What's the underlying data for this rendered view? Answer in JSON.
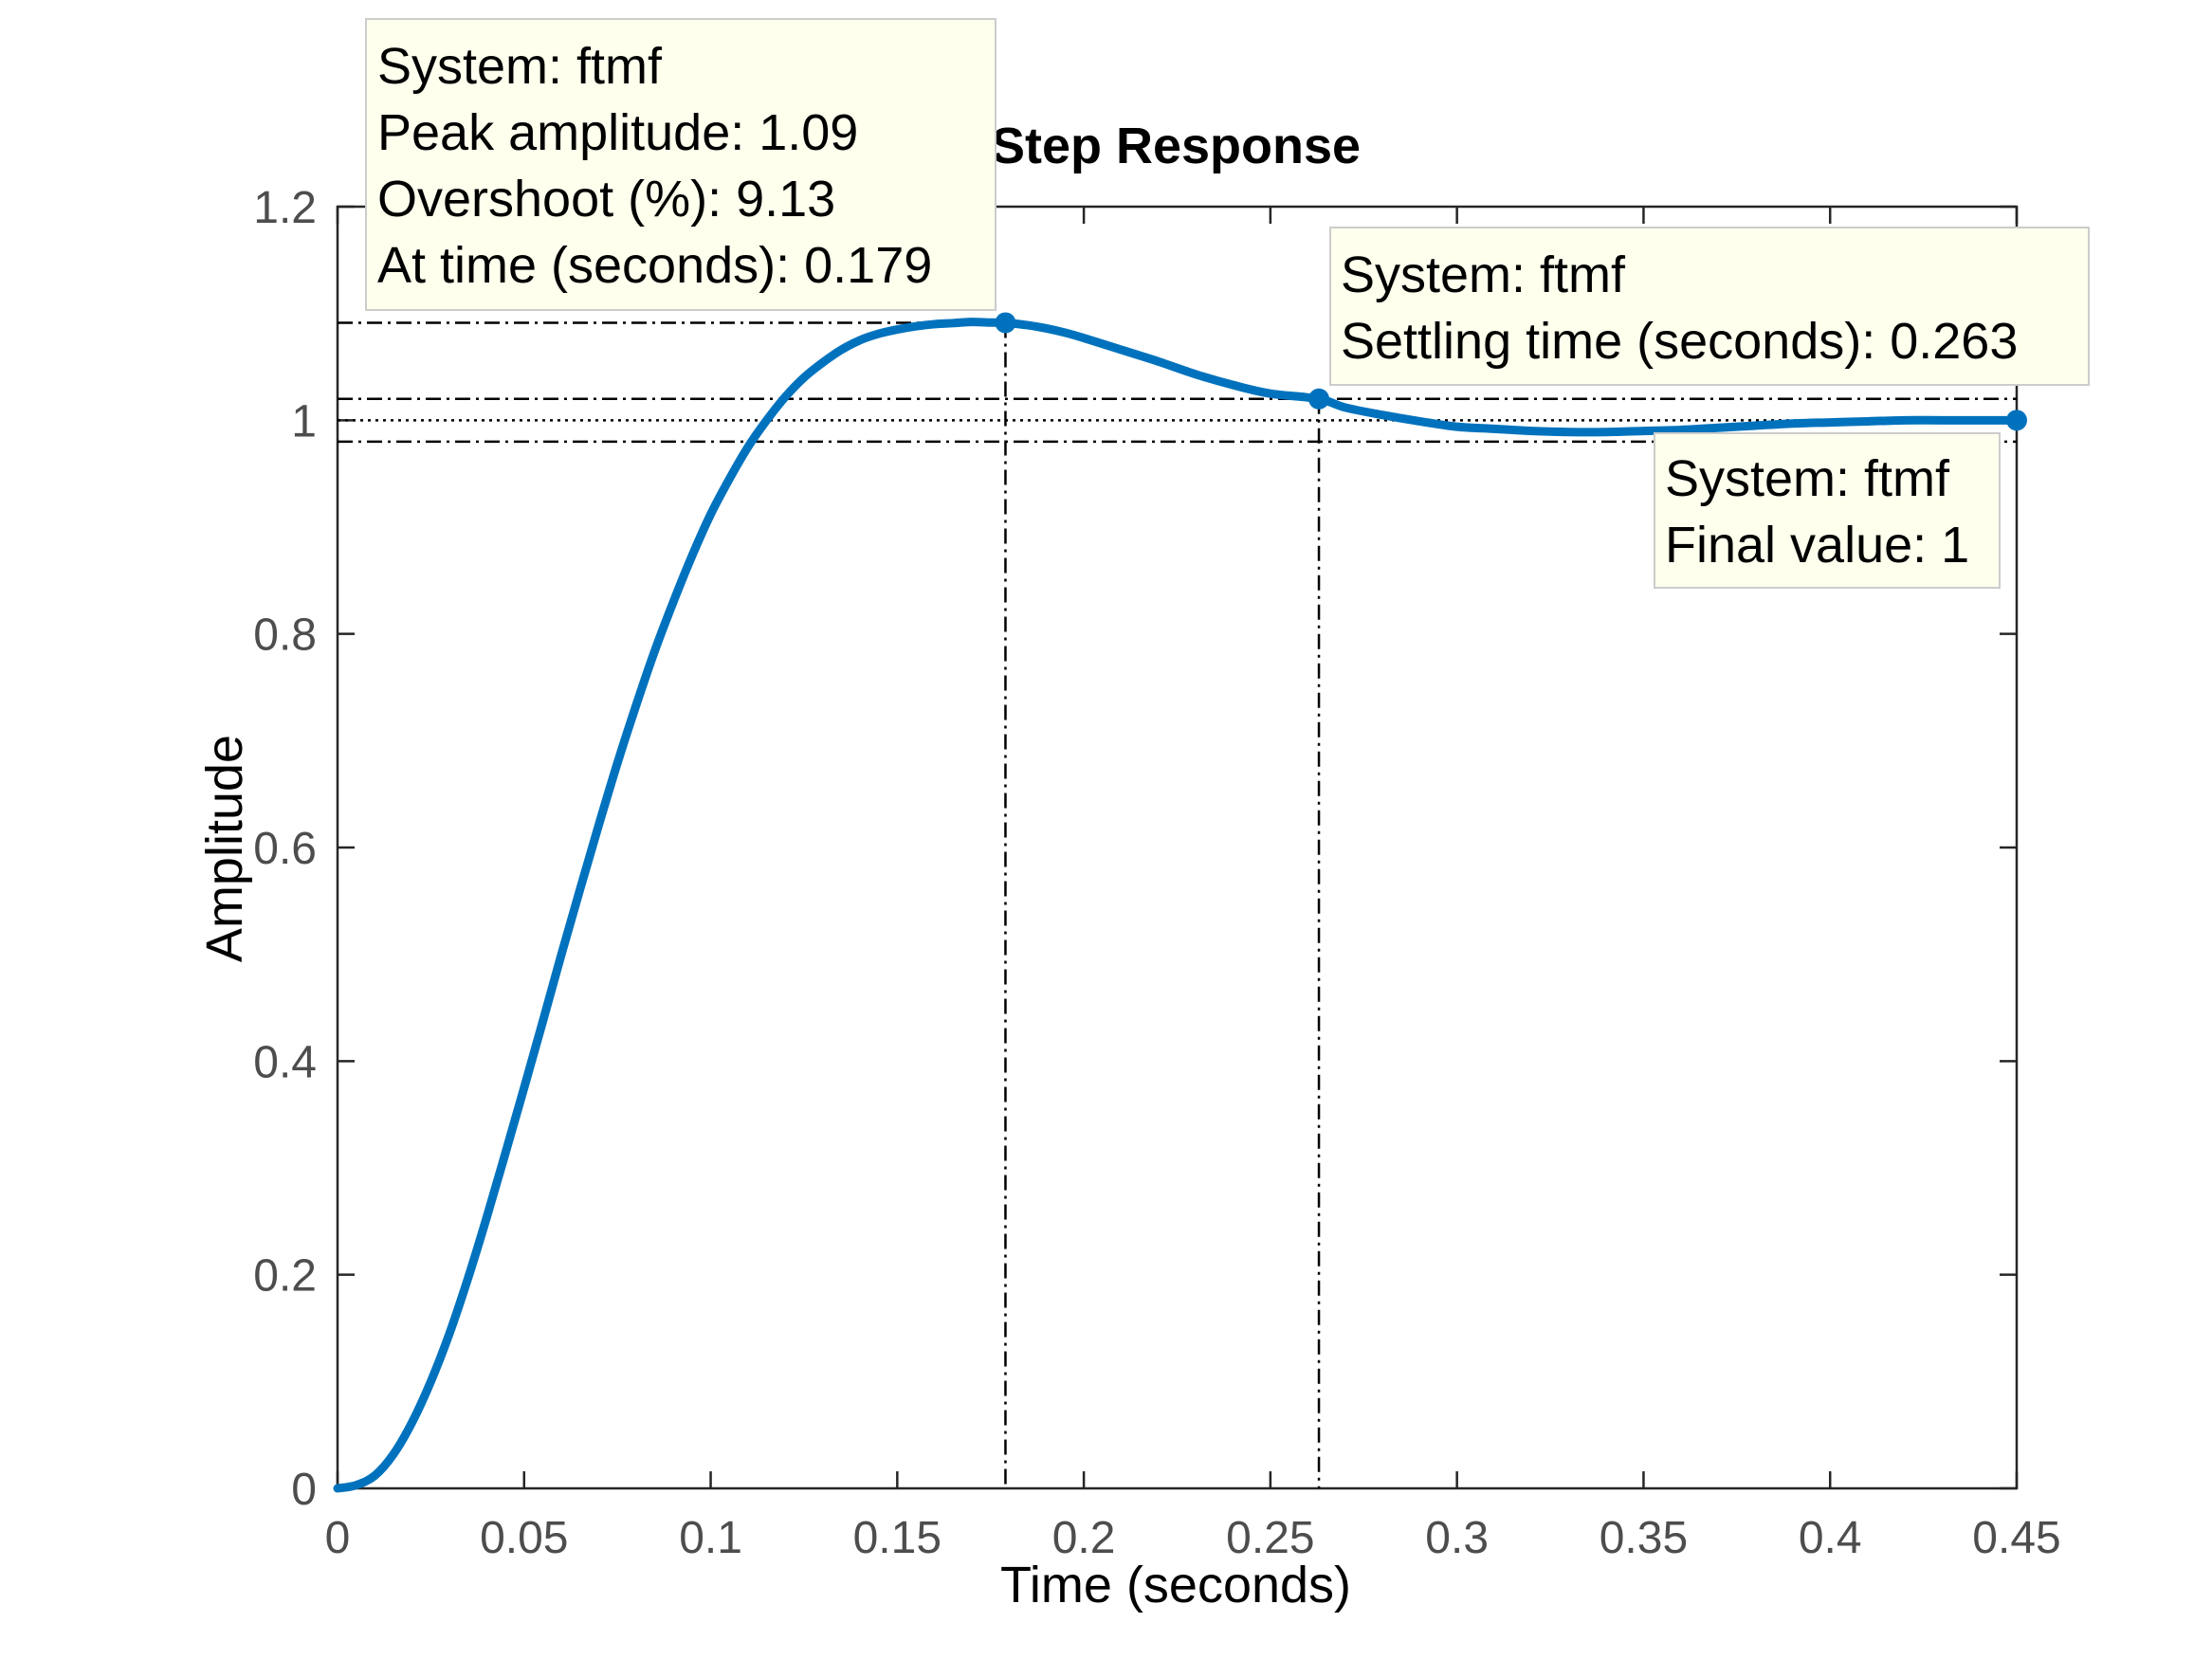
{
  "chart_data": {
    "type": "line",
    "title": "Step Response",
    "xlabel": "Time (seconds)",
    "ylabel": "Amplitude",
    "xlim": [
      0,
      0.45
    ],
    "ylim": [
      0,
      1.2
    ],
    "x_ticks": [
      0,
      0.05,
      0.1,
      0.15,
      0.2,
      0.25,
      0.3,
      0.35,
      0.4,
      0.45
    ],
    "x_tick_labels": [
      "0",
      "0.05",
      "0.1",
      "0.15",
      "0.2",
      "0.25",
      "0.3",
      "0.35",
      "0.4",
      "0.45"
    ],
    "y_ticks": [
      0,
      0.2,
      0.4,
      0.6,
      0.8,
      1,
      1.2
    ],
    "y_tick_labels": [
      "0",
      "0.2",
      "0.4",
      "0.6",
      "0.8",
      "1",
      "1.2"
    ],
    "grid": false,
    "series": [
      {
        "color": "#0072BD",
        "x": [
          0,
          0.005,
          0.01,
          0.015,
          0.02,
          0.025,
          0.03,
          0.035,
          0.04,
          0.045,
          0.05,
          0.055,
          0.06,
          0.065,
          0.07,
          0.075,
          0.08,
          0.085,
          0.09,
          0.095,
          0.1,
          0.105,
          0.11,
          0.115,
          0.12,
          0.125,
          0.13,
          0.135,
          0.14,
          0.145,
          0.15,
          0.155,
          0.16,
          0.165,
          0.17,
          0.175,
          0.179,
          0.185,
          0.19,
          0.195,
          0.2,
          0.21,
          0.22,
          0.23,
          0.24,
          0.25,
          0.263,
          0.27,
          0.28,
          0.29,
          0.3,
          0.31,
          0.32,
          0.33,
          0.34,
          0.35,
          0.36,
          0.37,
          0.38,
          0.39,
          0.4,
          0.41,
          0.42,
          0.43,
          0.44,
          0.45
        ],
        "y": [
          0,
          0.003,
          0.012,
          0.032,
          0.062,
          0.1,
          0.145,
          0.197,
          0.254,
          0.314,
          0.375,
          0.437,
          0.5,
          0.561,
          0.621,
          0.679,
          0.733,
          0.784,
          0.83,
          0.873,
          0.912,
          0.945,
          0.975,
          1.0,
          1.022,
          1.04,
          1.054,
          1.066,
          1.075,
          1.081,
          1.085,
          1.088,
          1.09,
          1.091,
          1.092,
          1.0915,
          1.0913,
          1.089,
          1.086,
          1.082,
          1.077,
          1.066,
          1.055,
          1.043,
          1.033,
          1.025,
          1.02,
          1.012,
          1.005,
          0.999,
          0.994,
          0.992,
          0.99,
          0.989,
          0.989,
          0.99,
          0.991,
          0.993,
          0.995,
          0.997,
          0.998,
          0.999,
          1.0,
          1.0,
          1.0,
          1.0
        ]
      }
    ],
    "reference_lines": {
      "final_value": 1.0,
      "settling_band": [
        0.98,
        1.02
      ],
      "peak_amplitude": 1.0913,
      "peak_time": 0.179,
      "settling_time": 0.263,
      "settling_value": 1.02
    },
    "datatips": [
      {
        "id": "peak",
        "point": [
          0.179,
          1.0913
        ],
        "lines": [
          "System: ftmf",
          "Peak amplitude: 1.09",
          "Overshoot (%): 9.13",
          "At time (seconds): 0.179"
        ]
      },
      {
        "id": "settling",
        "point": [
          0.263,
          1.02
        ],
        "lines": [
          "System: ftmf",
          "Settling time (seconds): 0.263"
        ]
      },
      {
        "id": "final",
        "point": [
          0.45,
          1.0
        ],
        "lines": [
          "System: ftmf",
          "Final value: 1"
        ]
      }
    ],
    "colors": {
      "line": "#0072BD",
      "datatip_bg": "#FFFFEE",
      "datatip_border": "#CCCCCC",
      "axis": "#262626",
      "tick_text": "#4D4D4D"
    }
  }
}
